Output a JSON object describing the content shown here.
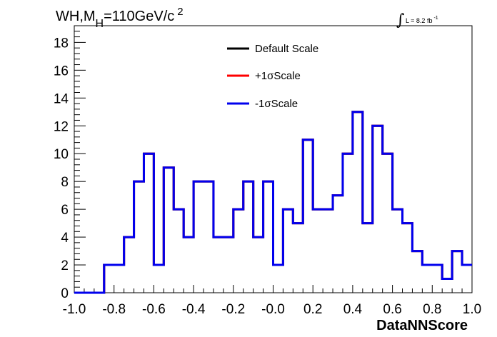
{
  "chart_data": {
    "type": "line",
    "title_main": "WH,M",
    "title_sub": "H",
    "title_rest": "=110GeV/c",
    "title_sup": "2",
    "lumi_symbol": "∫",
    "lumi_text": "L = 8.2 fb",
    "lumi_sup": "-1",
    "xlabel": "DataNNScore",
    "ylabel": "",
    "xlim": [
      -1.0,
      1.0
    ],
    "ylim": [
      0,
      19.2
    ],
    "grid": false,
    "legend_position": "top-center",
    "x_ticks": [
      "-1.0",
      "-0.8",
      "-0.6",
      "-0.4",
      "-0.2",
      "-0.0",
      "0.2",
      "0.4",
      "0.6",
      "0.8",
      "1.0"
    ],
    "y_ticks": [
      "0",
      "2",
      "4",
      "6",
      "8",
      "10",
      "12",
      "14",
      "16",
      "18"
    ],
    "bin_edges": [
      -1.0,
      -0.85,
      -0.75,
      -0.7,
      -0.65,
      -0.6,
      -0.55,
      -0.5,
      -0.45,
      -0.4,
      -0.3,
      -0.2,
      -0.15,
      -0.1,
      -0.05,
      0.0,
      0.05,
      0.1,
      0.15,
      0.2,
      0.25,
      0.3,
      0.35,
      0.4,
      0.45,
      0.5,
      0.55,
      0.6,
      0.65,
      0.7,
      0.75,
      0.8,
      0.85,
      0.9,
      0.95,
      1.0
    ],
    "series": [
      {
        "name": "Default Scale",
        "color": "#000000",
        "values": [
          0,
          2,
          4,
          8,
          10,
          2,
          9,
          6,
          4,
          8,
          4,
          6,
          8,
          4,
          8,
          2,
          6,
          5,
          11,
          6,
          6,
          7,
          10,
          13,
          5,
          12,
          10,
          6,
          5,
          3,
          2,
          2,
          1,
          3,
          2
        ]
      },
      {
        "name": "+1σScale",
        "color": "#ff0000",
        "values": [
          0,
          2,
          4,
          8,
          10,
          2,
          9,
          6,
          4,
          8,
          4,
          6,
          8,
          4,
          8,
          2,
          6,
          5,
          11,
          6,
          6,
          7,
          10,
          13,
          5,
          12,
          10,
          6,
          5,
          3,
          2,
          2,
          1,
          3,
          2
        ]
      },
      {
        "name": "-1σScale",
        "color": "#0000ee",
        "values": [
          0,
          2,
          4,
          8,
          10,
          2,
          9,
          6,
          4,
          8,
          4,
          6,
          8,
          4,
          8,
          2,
          6,
          5,
          11,
          6,
          6,
          7,
          10,
          13,
          5,
          12,
          10,
          6,
          5,
          3,
          2,
          2,
          1,
          3,
          2
        ]
      }
    ]
  }
}
